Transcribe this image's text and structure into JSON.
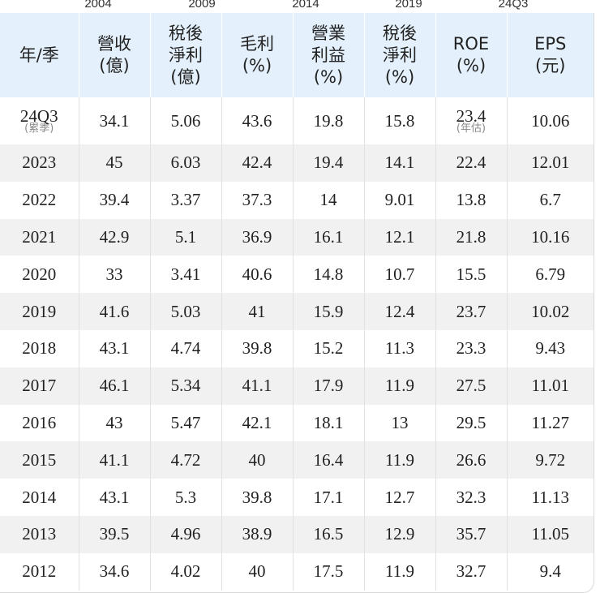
{
  "top_axis": [
    "2004",
    "2009",
    "2014",
    "2019",
    "24Q3"
  ],
  "headers": [
    [
      "年/季"
    ],
    [
      "營收",
      "(億)"
    ],
    [
      "稅後",
      "淨利",
      "(億)"
    ],
    [
      "毛利",
      "(%)"
    ],
    [
      "營業",
      "利益",
      "(%)"
    ],
    [
      "稅後",
      "淨利",
      "(%)"
    ],
    [
      "ROE",
      "(%)"
    ],
    [
      "EPS",
      "(元)"
    ]
  ],
  "first_row": {
    "period": "24Q3",
    "period_note": "(累季)",
    "revenue": "34.1",
    "net_income": "5.06",
    "gross_margin": "43.6",
    "operating_margin": "19.8",
    "net_margin": "15.8",
    "roe": "23.4",
    "roe_note": "(年估)",
    "eps": "10.06"
  },
  "rows": [
    [
      "2023",
      "45",
      "6.03",
      "42.4",
      "19.4",
      "14.1",
      "22.4",
      "12.01"
    ],
    [
      "2022",
      "39.4",
      "3.37",
      "37.3",
      "14",
      "9.01",
      "13.8",
      "6.7"
    ],
    [
      "2021",
      "42.9",
      "5.1",
      "36.9",
      "16.1",
      "12.1",
      "21.8",
      "10.16"
    ],
    [
      "2020",
      "33",
      "3.41",
      "40.6",
      "14.8",
      "10.7",
      "15.5",
      "6.79"
    ],
    [
      "2019",
      "41.6",
      "5.03",
      "41",
      "15.9",
      "12.4",
      "23.7",
      "10.02"
    ],
    [
      "2018",
      "43.1",
      "4.74",
      "39.8",
      "15.2",
      "11.3",
      "23.3",
      "9.43"
    ],
    [
      "2017",
      "46.1",
      "5.34",
      "41.1",
      "17.9",
      "11.9",
      "27.5",
      "11.01"
    ],
    [
      "2016",
      "43",
      "5.47",
      "42.1",
      "18.1",
      "13",
      "29.5",
      "11.27"
    ],
    [
      "2015",
      "41.1",
      "4.72",
      "40",
      "16.4",
      "11.9",
      "26.6",
      "9.72"
    ],
    [
      "2014",
      "43.1",
      "5.3",
      "39.8",
      "17.1",
      "12.7",
      "32.3",
      "11.13"
    ],
    [
      "2013",
      "39.5",
      "4.96",
      "38.9",
      "16.5",
      "12.9",
      "35.7",
      "11.05"
    ],
    [
      "2012",
      "34.6",
      "4.02",
      "40",
      "17.5",
      "11.9",
      "32.7",
      "9.4"
    ]
  ]
}
